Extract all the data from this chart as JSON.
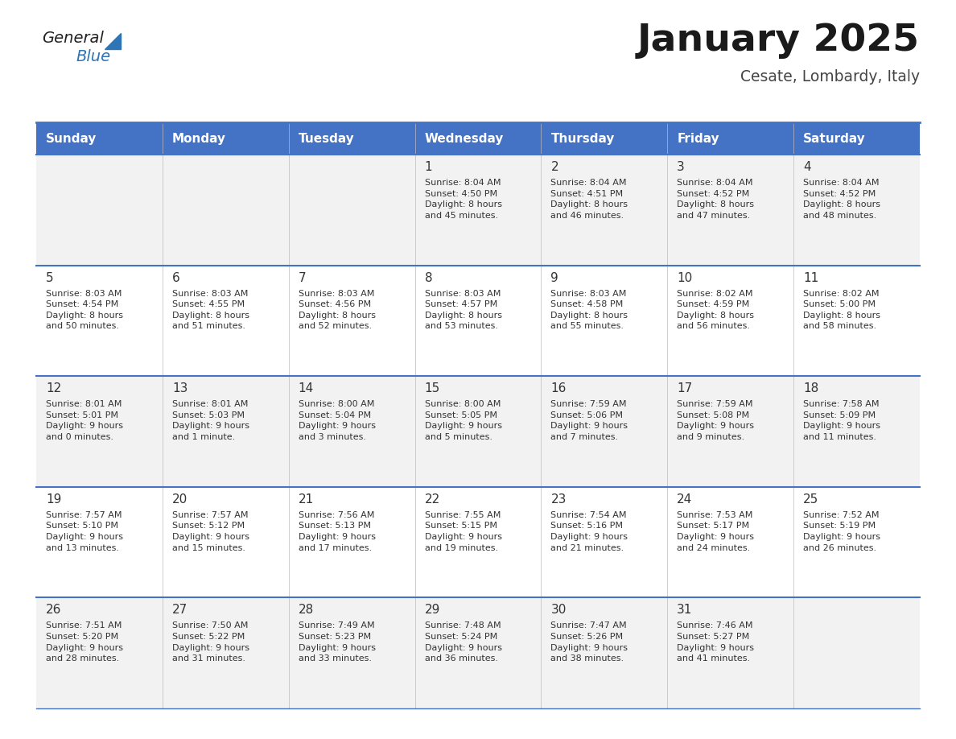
{
  "title": "January 2025",
  "subtitle": "Cesate, Lombardy, Italy",
  "header_bg": "#4472C4",
  "header_text": "#FFFFFF",
  "row_bg_even": "#F2F2F2",
  "row_bg_odd": "#FFFFFF",
  "separator_color": "#4472C4",
  "text_color": "#333333",
  "day_headers": [
    "Sunday",
    "Monday",
    "Tuesday",
    "Wednesday",
    "Thursday",
    "Friday",
    "Saturday"
  ],
  "weeks": [
    {
      "days": [
        {
          "day": "",
          "info": ""
        },
        {
          "day": "",
          "info": ""
        },
        {
          "day": "",
          "info": ""
        },
        {
          "day": "1",
          "info": "Sunrise: 8:04 AM\nSunset: 4:50 PM\nDaylight: 8 hours\nand 45 minutes."
        },
        {
          "day": "2",
          "info": "Sunrise: 8:04 AM\nSunset: 4:51 PM\nDaylight: 8 hours\nand 46 minutes."
        },
        {
          "day": "3",
          "info": "Sunrise: 8:04 AM\nSunset: 4:52 PM\nDaylight: 8 hours\nand 47 minutes."
        },
        {
          "day": "4",
          "info": "Sunrise: 8:04 AM\nSunset: 4:52 PM\nDaylight: 8 hours\nand 48 minutes."
        }
      ]
    },
    {
      "days": [
        {
          "day": "5",
          "info": "Sunrise: 8:03 AM\nSunset: 4:54 PM\nDaylight: 8 hours\nand 50 minutes."
        },
        {
          "day": "6",
          "info": "Sunrise: 8:03 AM\nSunset: 4:55 PM\nDaylight: 8 hours\nand 51 minutes."
        },
        {
          "day": "7",
          "info": "Sunrise: 8:03 AM\nSunset: 4:56 PM\nDaylight: 8 hours\nand 52 minutes."
        },
        {
          "day": "8",
          "info": "Sunrise: 8:03 AM\nSunset: 4:57 PM\nDaylight: 8 hours\nand 53 minutes."
        },
        {
          "day": "9",
          "info": "Sunrise: 8:03 AM\nSunset: 4:58 PM\nDaylight: 8 hours\nand 55 minutes."
        },
        {
          "day": "10",
          "info": "Sunrise: 8:02 AM\nSunset: 4:59 PM\nDaylight: 8 hours\nand 56 minutes."
        },
        {
          "day": "11",
          "info": "Sunrise: 8:02 AM\nSunset: 5:00 PM\nDaylight: 8 hours\nand 58 minutes."
        }
      ]
    },
    {
      "days": [
        {
          "day": "12",
          "info": "Sunrise: 8:01 AM\nSunset: 5:01 PM\nDaylight: 9 hours\nand 0 minutes."
        },
        {
          "day": "13",
          "info": "Sunrise: 8:01 AM\nSunset: 5:03 PM\nDaylight: 9 hours\nand 1 minute."
        },
        {
          "day": "14",
          "info": "Sunrise: 8:00 AM\nSunset: 5:04 PM\nDaylight: 9 hours\nand 3 minutes."
        },
        {
          "day": "15",
          "info": "Sunrise: 8:00 AM\nSunset: 5:05 PM\nDaylight: 9 hours\nand 5 minutes."
        },
        {
          "day": "16",
          "info": "Sunrise: 7:59 AM\nSunset: 5:06 PM\nDaylight: 9 hours\nand 7 minutes."
        },
        {
          "day": "17",
          "info": "Sunrise: 7:59 AM\nSunset: 5:08 PM\nDaylight: 9 hours\nand 9 minutes."
        },
        {
          "day": "18",
          "info": "Sunrise: 7:58 AM\nSunset: 5:09 PM\nDaylight: 9 hours\nand 11 minutes."
        }
      ]
    },
    {
      "days": [
        {
          "day": "19",
          "info": "Sunrise: 7:57 AM\nSunset: 5:10 PM\nDaylight: 9 hours\nand 13 minutes."
        },
        {
          "day": "20",
          "info": "Sunrise: 7:57 AM\nSunset: 5:12 PM\nDaylight: 9 hours\nand 15 minutes."
        },
        {
          "day": "21",
          "info": "Sunrise: 7:56 AM\nSunset: 5:13 PM\nDaylight: 9 hours\nand 17 minutes."
        },
        {
          "day": "22",
          "info": "Sunrise: 7:55 AM\nSunset: 5:15 PM\nDaylight: 9 hours\nand 19 minutes."
        },
        {
          "day": "23",
          "info": "Sunrise: 7:54 AM\nSunset: 5:16 PM\nDaylight: 9 hours\nand 21 minutes."
        },
        {
          "day": "24",
          "info": "Sunrise: 7:53 AM\nSunset: 5:17 PM\nDaylight: 9 hours\nand 24 minutes."
        },
        {
          "day": "25",
          "info": "Sunrise: 7:52 AM\nSunset: 5:19 PM\nDaylight: 9 hours\nand 26 minutes."
        }
      ]
    },
    {
      "days": [
        {
          "day": "26",
          "info": "Sunrise: 7:51 AM\nSunset: 5:20 PM\nDaylight: 9 hours\nand 28 minutes."
        },
        {
          "day": "27",
          "info": "Sunrise: 7:50 AM\nSunset: 5:22 PM\nDaylight: 9 hours\nand 31 minutes."
        },
        {
          "day": "28",
          "info": "Sunrise: 7:49 AM\nSunset: 5:23 PM\nDaylight: 9 hours\nand 33 minutes."
        },
        {
          "day": "29",
          "info": "Sunrise: 7:48 AM\nSunset: 5:24 PM\nDaylight: 9 hours\nand 36 minutes."
        },
        {
          "day": "30",
          "info": "Sunrise: 7:47 AM\nSunset: 5:26 PM\nDaylight: 9 hours\nand 38 minutes."
        },
        {
          "day": "31",
          "info": "Sunrise: 7:46 AM\nSunset: 5:27 PM\nDaylight: 9 hours\nand 41 minutes."
        },
        {
          "day": "",
          "info": ""
        }
      ]
    }
  ],
  "logo_general_color": "#222222",
  "logo_blue_color": "#2E75B6",
  "triangle_color": "#2E75B6"
}
